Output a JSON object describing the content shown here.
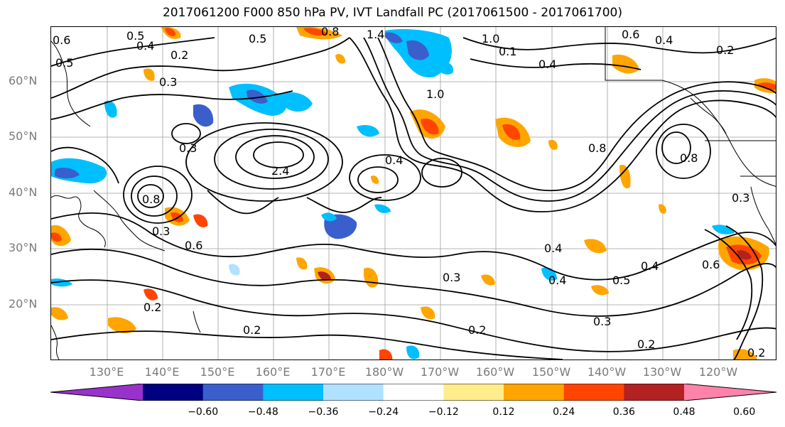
{
  "title": "2017061200 F000 850 hPa PV, IVT Landfall PC (2017061500 - 2017061700)",
  "lat_labels": [
    "60°N",
    "50°N",
    "40°N",
    "30°N",
    "20°N"
  ],
  "lon_labels": [
    "130°E",
    "140°E",
    "150°E",
    "160°E",
    "170°E",
    "180°W",
    "170°W",
    "160°W",
    "150°W",
    "140°W",
    "130°W",
    "120°W"
  ],
  "colorbar": {
    "ticks": [
      "−0.60",
      "−0.48",
      "−0.36",
      "−0.24",
      "−0.12",
      "0.12",
      "0.24",
      "0.36",
      "0.48",
      "0.60"
    ],
    "colors": [
      "#9932cc",
      "#000080",
      "#3a5fcd",
      "#00bfff",
      "#b0e2ff",
      "#ffffff",
      "#ffec8b",
      "#ffa500",
      "#ff4500",
      "#b22222",
      "#ff82ab"
    ]
  },
  "contour_labels": [
    "0.5",
    "0.4",
    "0.5",
    "0.8",
    "1.4",
    "1.0",
    "0.6",
    "0.4",
    "0.2",
    "0.6",
    "0.5",
    "0.2",
    "0.3",
    "0.1",
    "0.4",
    "1.0",
    "0.4",
    "0.8",
    "0.3",
    "2.4",
    "0.8",
    "0.3",
    "0.6",
    "0.4",
    "0.8",
    "0.3",
    "0.4",
    "0.3",
    "0.5",
    "0.4",
    "0.2",
    "0.2",
    "0.2",
    "0.3",
    "0.2",
    "0.2",
    "0.6"
  ],
  "map_features": [
    "coastline",
    "graticule",
    "pv-shading",
    "ivt-pc-contours"
  ]
}
